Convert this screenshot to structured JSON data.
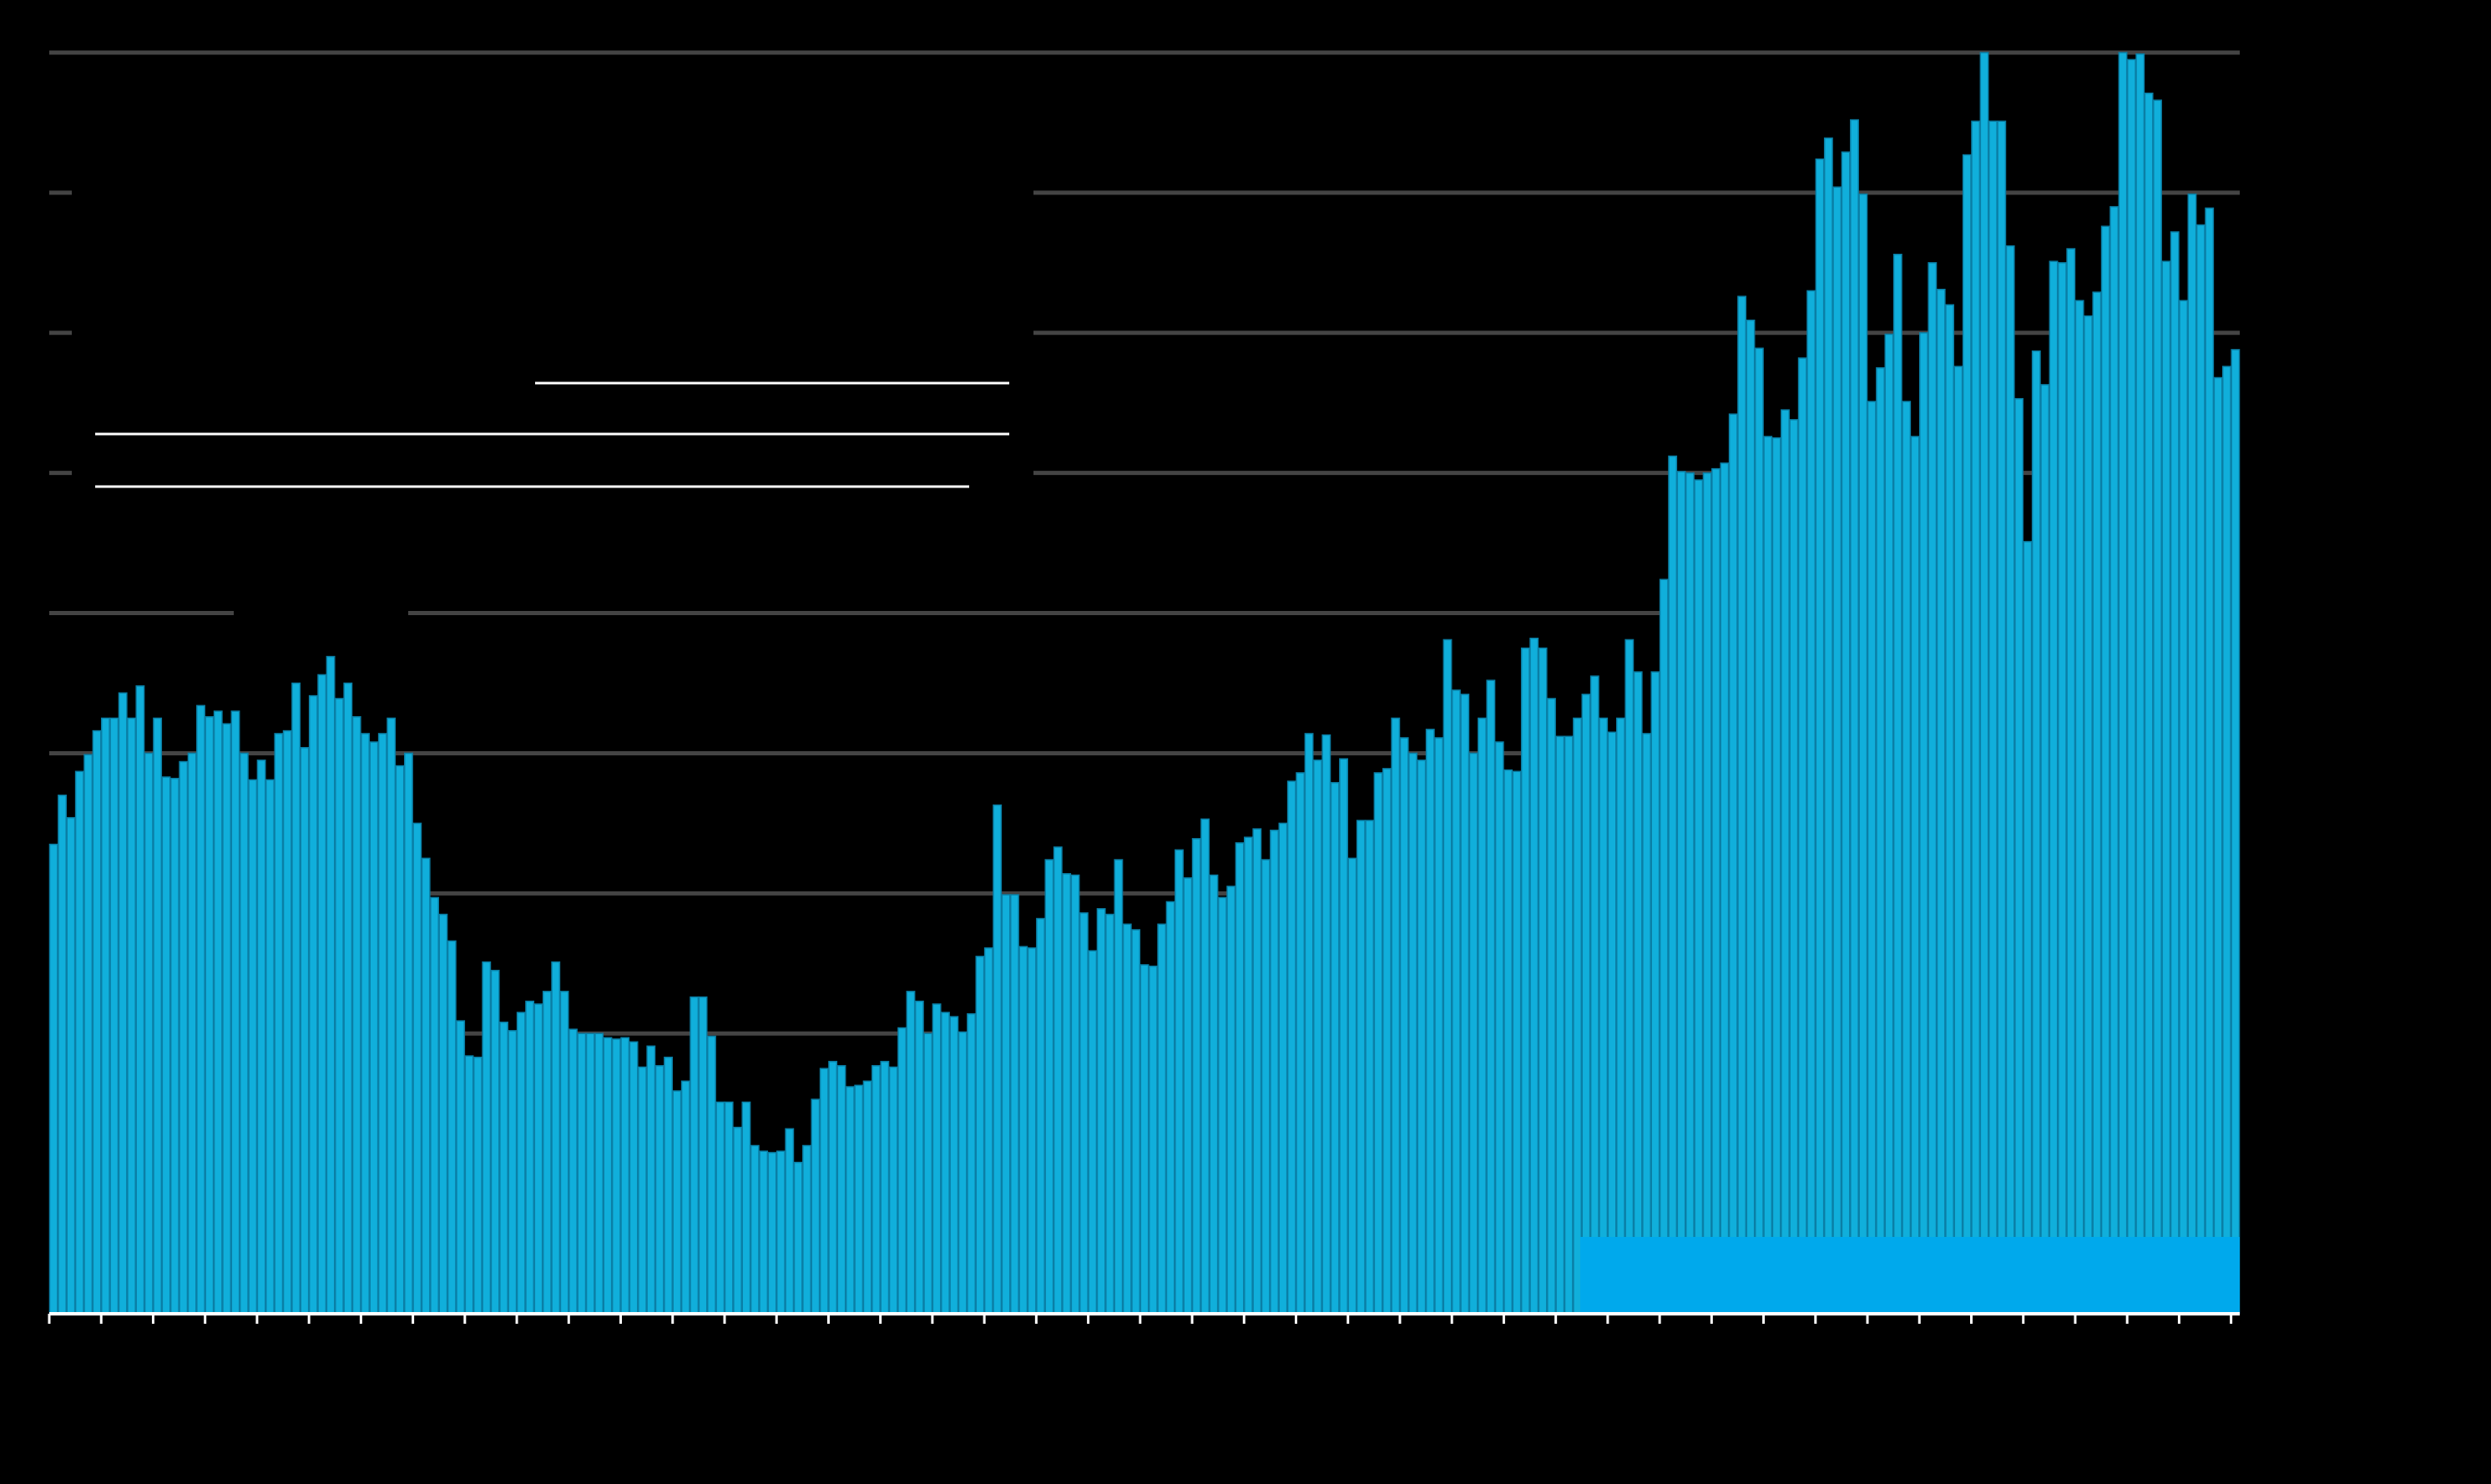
{
  "chart_data": {
    "type": "bar",
    "values": [
      33.5,
      37.0,
      35.4,
      38.7,
      39.9,
      41.6,
      42.5,
      42.5,
      44.3,
      42.5,
      44.8,
      40.0,
      42.5,
      38.3,
      38.2,
      39.4,
      40.0,
      43.4,
      42.6,
      43.0,
      42.1,
      43.0,
      40.0,
      38.1,
      39.5,
      38.1,
      41.4,
      41.6,
      45.0,
      40.4,
      44.1,
      45.6,
      46.9,
      43.9,
      45.0,
      42.6,
      41.4,
      40.8,
      41.4,
      42.5,
      39.1,
      40.0,
      35.0,
      32.5,
      29.7,
      28.5,
      26.6,
      20.9,
      18.4,
      18.3,
      25.1,
      24.5,
      20.8,
      20.2,
      21.5,
      22.3,
      22.1,
      23.0,
      25.1,
      23.0,
      20.3,
      20.0,
      20.0,
      20.0,
      19.7,
      19.6,
      19.7,
      19.4,
      17.6,
      19.1,
      17.7,
      18.3,
      15.9,
      16.6,
      22.6,
      22.6,
      19.8,
      15.1,
      15.1,
      13.3,
      15.1,
      12.0,
      11.6,
      11.5,
      11.6,
      13.2,
      10.8,
      12.0,
      15.3,
      17.5,
      18.0,
      17.7,
      16.2,
      16.3,
      16.6,
      17.7,
      18.0,
      17.6,
      20.4,
      23.0,
      22.3,
      20.0,
      22.1,
      21.5,
      21.2,
      20.1,
      21.4,
      25.5,
      26.1,
      36.3,
      29.9,
      29.9,
      26.2,
      26.1,
      28.2,
      32.4,
      33.3,
      31.4,
      31.3,
      28.6,
      25.9,
      28.9,
      28.5,
      32.4,
      27.8,
      27.4,
      24.9,
      24.8,
      27.8,
      29.4,
      33.1,
      31.1,
      33.9,
      35.3,
      31.3,
      29.7,
      30.5,
      33.6,
      34.0,
      34.6,
      32.4,
      34.5,
      35.0,
      38.0,
      38.6,
      41.4,
      39.5,
      41.3,
      37.9,
      39.6,
      32.5,
      35.2,
      35.2,
      38.6,
      38.9,
      42.5,
      41.1,
      40.0,
      39.5,
      41.7,
      41.1,
      48.1,
      44.5,
      44.2,
      40.0,
      42.5,
      45.2,
      40.8,
      38.8,
      38.7,
      47.5,
      48.2,
      47.5,
      43.9,
      41.2,
      41.2,
      42.5,
      44.2,
      45.5,
      42.5,
      41.5,
      42.5,
      48.1,
      45.8,
      41.4,
      45.8,
      52.4,
      61.2,
      60.1,
      60.0,
      59.5,
      60.0,
      60.3,
      60.7,
      64.2,
      72.6,
      70.9,
      68.9,
      62.6,
      62.5,
      64.5,
      63.8,
      68.2,
      73.0,
      82.4,
      83.9,
      80.4,
      82.9,
      85.2,
      79.9,
      65.1,
      67.5,
      69.9,
      75.6,
      65.1,
      62.6,
      70.0,
      75.0,
      73.1,
      72.0,
      67.6,
      82.7,
      85.1,
      90.0,
      85.1,
      85.1,
      76.2,
      65.3,
      55.1,
      68.7,
      66.3,
      75.1,
      75.0,
      76.0,
      72.3,
      71.2,
      72.9,
      77.6,
      79.0,
      90.0,
      89.5,
      89.9,
      87.1,
      86.6,
      75.1,
      77.2,
      72.3,
      79.9,
      77.7,
      78.9,
      66.8,
      67.6,
      68.8
    ],
    "color": "#10afdb",
    "ylim": [
      0,
      90
    ],
    "yticks": [
      0,
      10,
      20,
      30,
      40,
      50,
      60,
      70,
      80,
      90
    ],
    "grid": true
  }
}
